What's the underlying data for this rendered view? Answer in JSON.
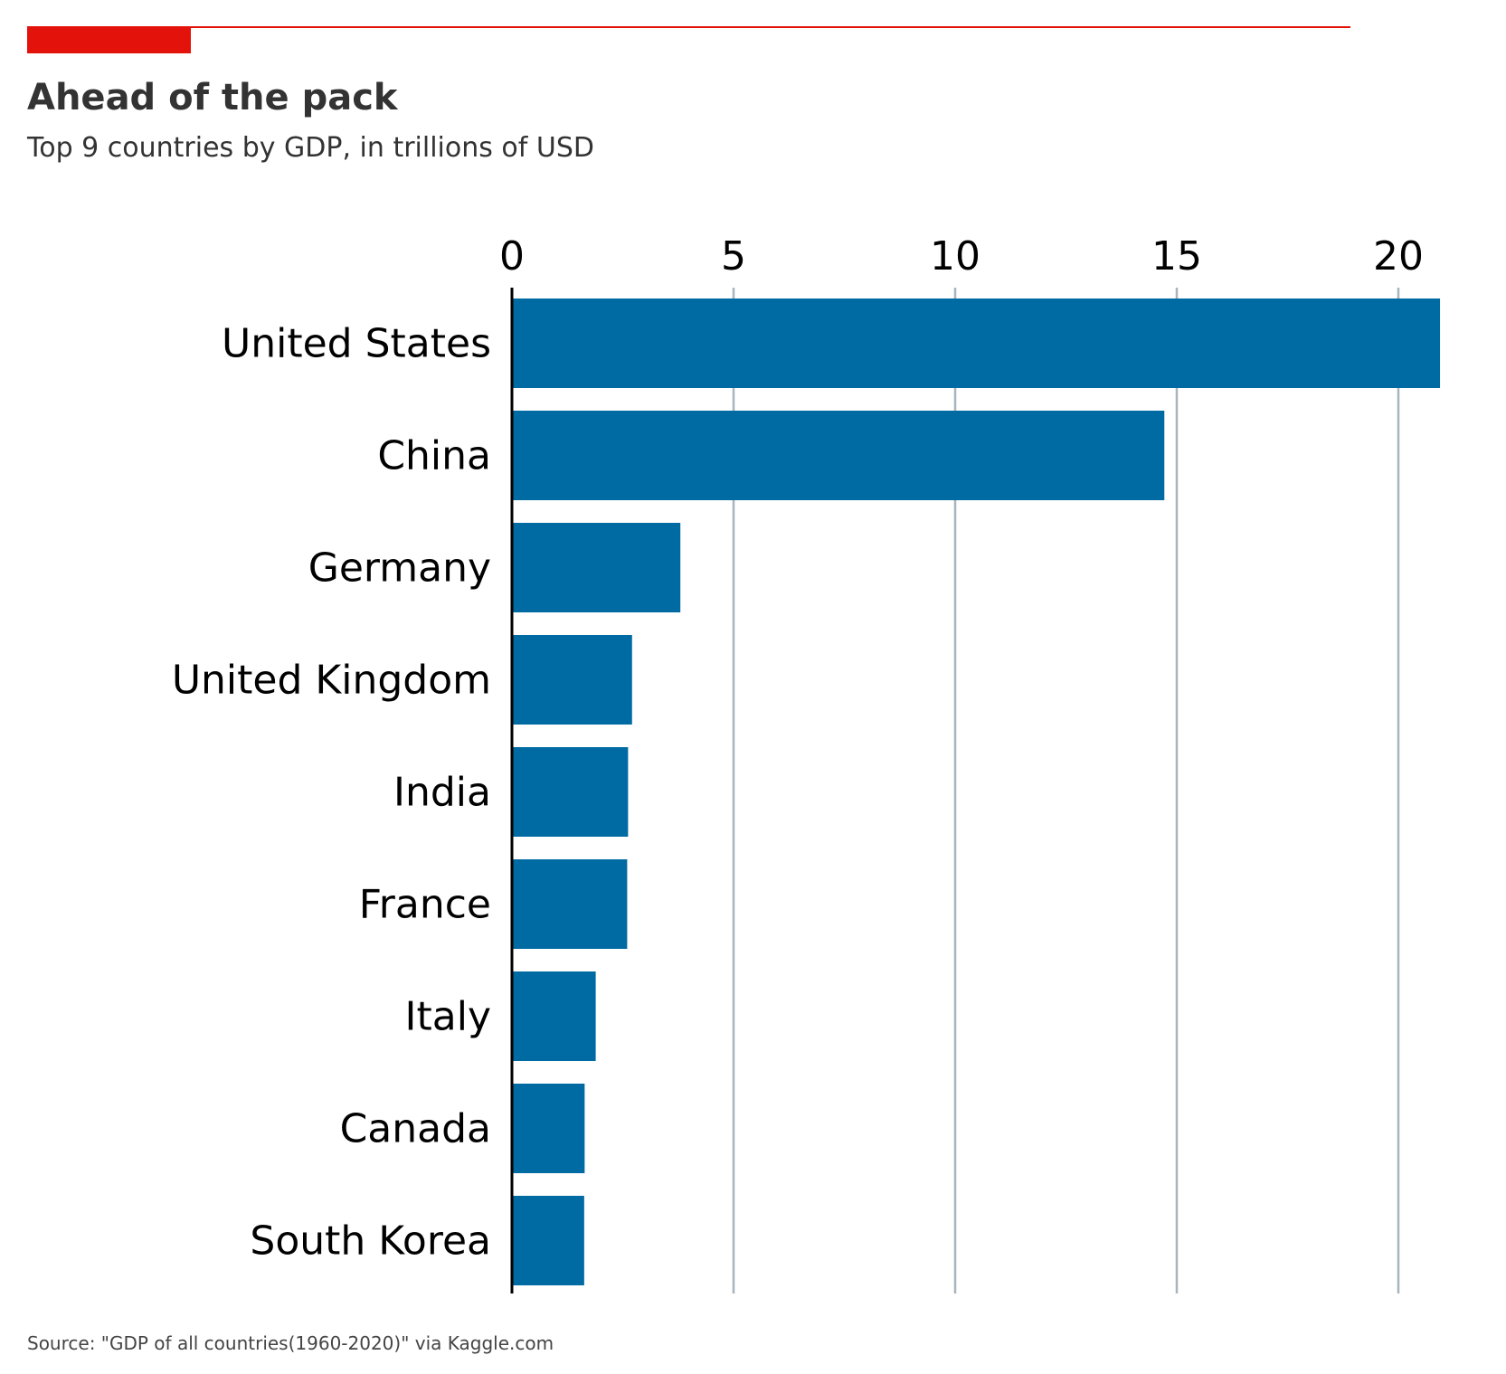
{
  "chart_data": {
    "type": "bar",
    "orientation": "horizontal",
    "title": "Ahead of the pack",
    "subtitle": "Top 9 countries by GDP, in trillions of USD",
    "source": "Source: \"GDP of all countries(1960-2020)\" via Kaggle.com",
    "categories": [
      "United States",
      "China",
      "Germany",
      "United Kingdom",
      "India",
      "France",
      "Italy",
      "Canada",
      "South Korea"
    ],
    "values": [
      20.94,
      14.72,
      3.8,
      2.71,
      2.62,
      2.6,
      1.89,
      1.64,
      1.63
    ],
    "xticks": [
      0,
      5,
      10,
      15,
      20
    ],
    "xlim": [
      0,
      21
    ],
    "xaxis_position": "top",
    "grid": "vertical",
    "bar_color": "#006ba2",
    "grid_color": "#a8b5bd",
    "accent_color": "#e3120b",
    "text_color": "#333333"
  }
}
